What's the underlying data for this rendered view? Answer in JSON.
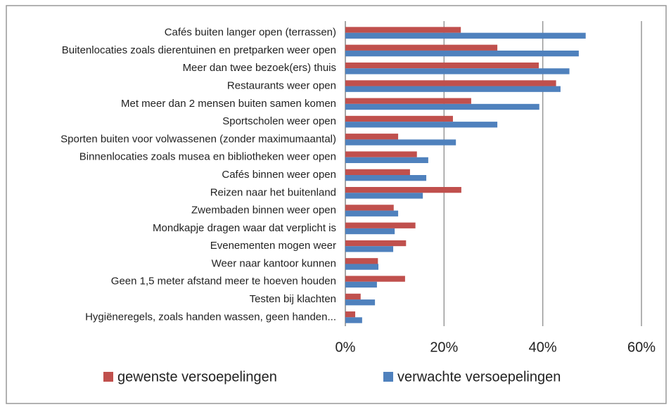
{
  "chart_data": {
    "type": "bar",
    "orientation": "horizontal",
    "categories": [
      "Cafés buiten langer open (terrassen)",
      "Buitenlocaties zoals dierentuinen en pretparken weer open",
      "Meer dan twee bezoek(ers) thuis",
      "Restaurants weer open",
      "Met meer dan 2 mensen buiten samen komen",
      "Sportscholen weer open",
      "Sporten buiten voor volwassenen (zonder maximumaantal)",
      "Binnenlocaties zoals musea en bibliotheken weer open",
      "Cafés binnen weer open",
      "Reizen naar het buitenland",
      "Zwembaden binnen weer open",
      "Mondkapje dragen waar dat verplicht is",
      "Evenementen mogen weer",
      "Weer naar kantoor kunnen",
      "Geen 1,5 meter afstand meer te hoeven houden",
      "Testen bij klachten",
      "Hygiëneregels, zoals handen wassen, geen handen..."
    ],
    "series": [
      {
        "name": "gewenste versoepelingen",
        "color": "#c0504d",
        "values": [
          23.4,
          30.8,
          39.2,
          42.7,
          25.5,
          21.8,
          10.7,
          14.5,
          13.1,
          23.5,
          9.8,
          14.2,
          12.3,
          6.6,
          12.1,
          3.1,
          2.0
        ]
      },
      {
        "name": "verwachte versoepelingen",
        "color": "#4f81bd",
        "values": [
          48.7,
          47.3,
          45.4,
          43.6,
          39.3,
          30.8,
          22.4,
          16.8,
          16.4,
          15.7,
          10.7,
          10.0,
          9.7,
          6.7,
          6.4,
          6.0,
          3.4
        ]
      }
    ],
    "xlim": [
      0,
      60
    ],
    "xticks": [
      {
        "value": 0,
        "label": "0%"
      },
      {
        "value": 20,
        "label": "20%"
      },
      {
        "value": 40,
        "label": "40%"
      },
      {
        "value": 60,
        "label": "60%"
      }
    ],
    "grid": true,
    "legend": "bottom"
  }
}
